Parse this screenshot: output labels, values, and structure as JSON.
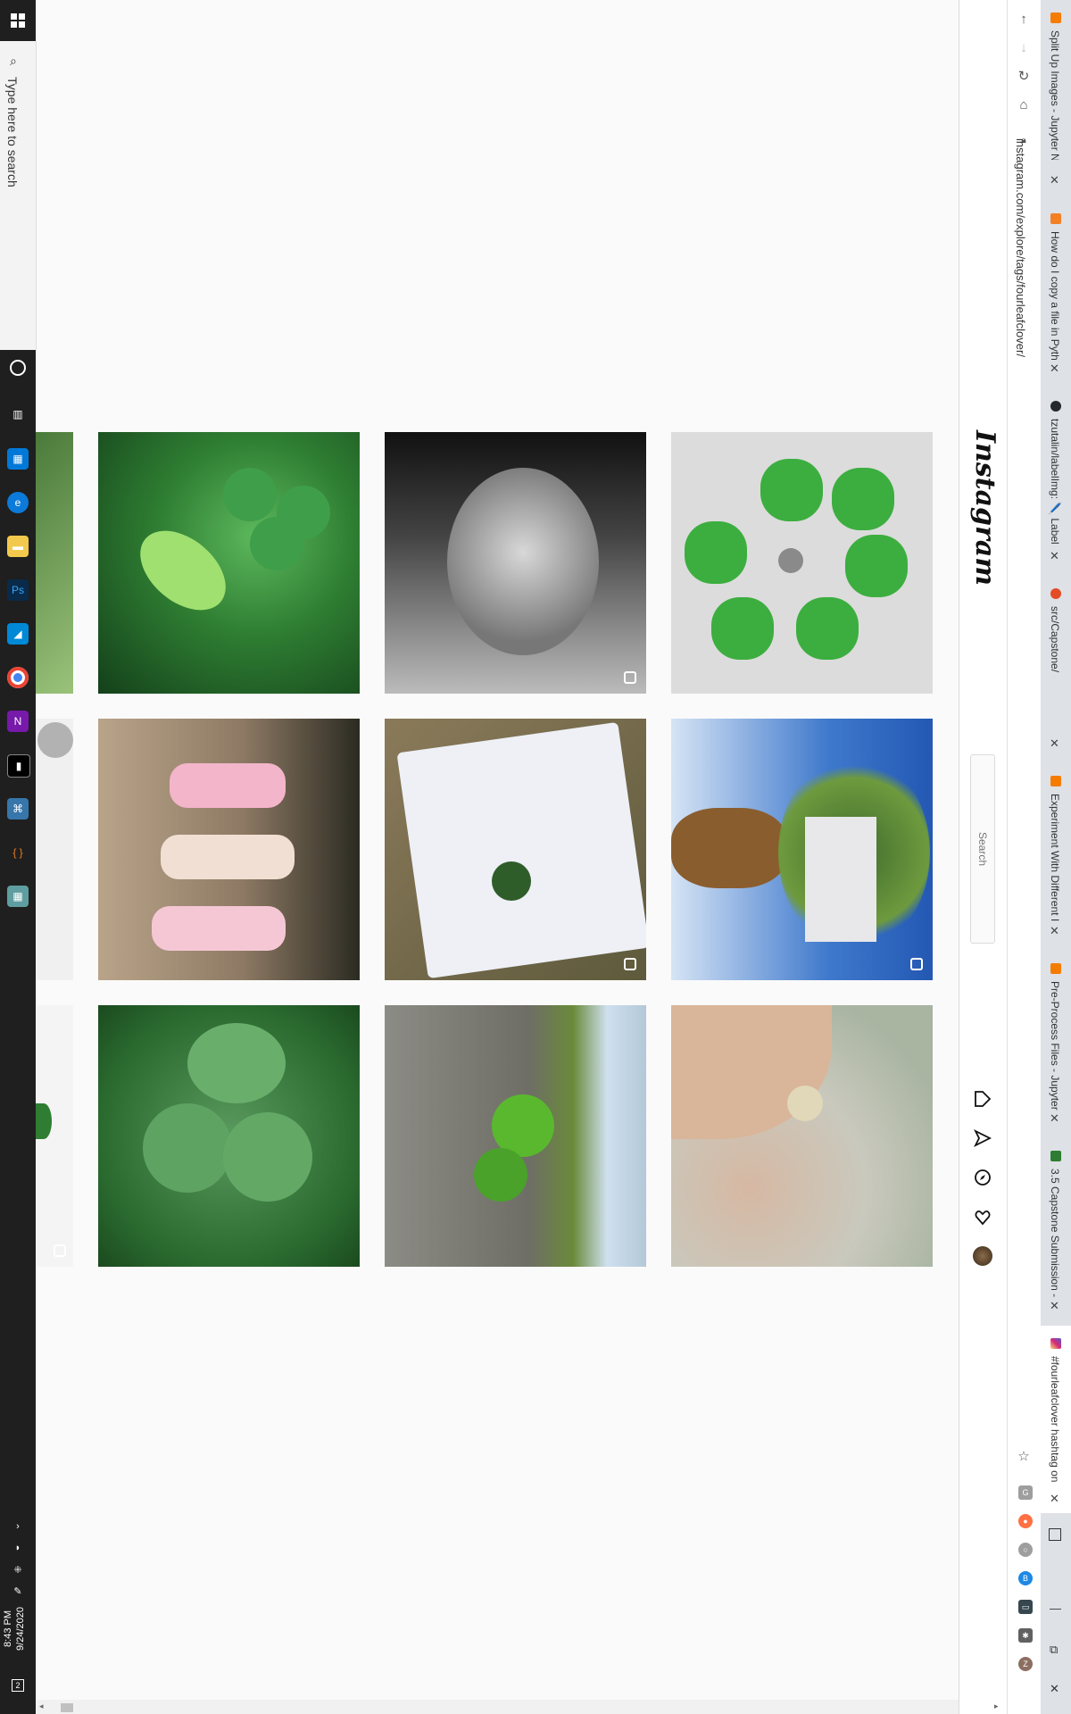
{
  "taskbar": {
    "search_placeholder": "Type here to search",
    "clock_time": "8:43 PM",
    "clock_date": "9/24/2020",
    "notification_count": "2",
    "apps": [
      "task-view",
      "store",
      "edge",
      "file-explorer",
      "photoshop",
      "azure",
      "chrome",
      "onenote",
      "terminal",
      "python",
      "brackets",
      "calculator"
    ]
  },
  "browser": {
    "url": "instagram.com/explore/tags/fourleafclover/",
    "tabs": [
      {
        "label": "Split Up Images - Jupyter N",
        "color": "#f57c00"
      },
      {
        "label": "How do I copy a file in Pyth",
        "color": "#f48024"
      },
      {
        "label": "tzutalin/labelImg: 🖊️ Label",
        "color": "#24292e"
      },
      {
        "label": "src/Capstone/",
        "color": "#e34c26"
      },
      {
        "label": "Experiment With Different I",
        "color": "#f57c00"
      },
      {
        "label": "Pre-Process Files - Jupyter N",
        "color": "#f57c00"
      },
      {
        "label": "3.5 Capstone Submission - ",
        "color": "#2e7d32"
      },
      {
        "label": "#fourleafclover hashtag on",
        "color": "#c13584"
      }
    ],
    "close_glyph": "✕",
    "extensions": [
      {
        "name": "google-icon",
        "color": "#9e9e9e",
        "text": "G"
      },
      {
        "name": "record-icon",
        "color": "#ff7043",
        "text": "●"
      },
      {
        "name": "circle-icon",
        "color": "#9e9e9e",
        "text": "○"
      },
      {
        "name": "b-icon",
        "color": "#1e88e5",
        "text": "B"
      },
      {
        "name": "camera-icon",
        "color": "#37474f",
        "text": "▭"
      },
      {
        "name": "puzzle-icon",
        "color": "#616161",
        "text": "✱"
      },
      {
        "name": "profile-icon",
        "color": "#8d6e63",
        "text": "Z"
      }
    ]
  },
  "instagram": {
    "logo": "Instagram",
    "search_placeholder": "Search",
    "nav_icons": [
      "home-icon",
      "direct-icon",
      "explore-icon",
      "activity-icon",
      "profile-avatar"
    ]
  },
  "posts": [
    {
      "name": "post-clover-leaf-closeup",
      "bg": "#2e7d32",
      "multi": false
    },
    {
      "name": "post-bw-portrait",
      "bg": "#555555",
      "multi": true
    },
    {
      "name": "post-clover-cookies",
      "bg": "#d9d9d9",
      "multi": false
    },
    {
      "name": "post-children-walking",
      "bg": "#8d7b6a",
      "multi": false
    },
    {
      "name": "post-book-clover",
      "bg": "#6d6a55",
      "multi": true
    },
    {
      "name": "post-palm-tree",
      "bg": "#4d7cc4",
      "multi": true
    },
    {
      "name": "post-clover-patch",
      "bg": "#3d8a47",
      "multi": false
    },
    {
      "name": "post-clover-road",
      "bg": "#7a7a72",
      "multi": false
    },
    {
      "name": "post-child-clover",
      "bg": "#b8bfaf",
      "multi": false
    }
  ]
}
